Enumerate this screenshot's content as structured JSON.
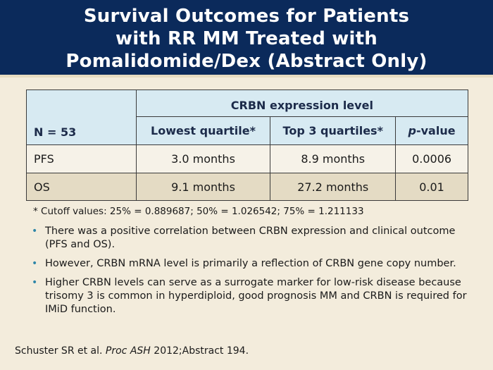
{
  "header": {
    "title_line1": "Survival Outcomes for Patients",
    "title_line2": "with RR MM Treated with",
    "title_line3": "Pomalidomide/Dex (Abstract Only)"
  },
  "table": {
    "n_label": "N = 53",
    "group_header": "CRBN expression level",
    "col_lowest": "Lowest quartile*",
    "col_top3": "Top 3 quartiles*",
    "col_p_italic": "p",
    "col_p_rest": "-value",
    "rows": [
      {
        "label": "PFS",
        "lowest": "3.0 months",
        "top3": "8.9 months",
        "p": "0.0006"
      },
      {
        "label": "OS",
        "lowest": "9.1 months",
        "top3": "27.2 months",
        "p": "0.01"
      }
    ]
  },
  "footnote": "* Cutoff values: 25% = 0.889687; 50% = 1.026542; 75% = 1.211133",
  "bullets": [
    "There was a positive correlation between CRBN expression and clinical outcome (PFS and OS).",
    "However, CRBN mRNA level is primarily a reflection of CRBN gene copy number.",
    "Higher CRBN levels can serve as a surrogate marker for low-risk disease because trisomy 3 is common in hyperdiploid, good prognosis MM and CRBN is required for IMiD function."
  ],
  "bullet_symbol": "•",
  "citation": {
    "authors": "Schuster SR et al.",
    "journal": "Proc ASH",
    "rest": "2012;Abstract 194."
  },
  "colors": {
    "header_bg": "#0b2a5b",
    "page_bg": "#f3ecdc",
    "table_header_bg": "#d7eaf2",
    "row_alt_bg": "#e4dbc4",
    "bullet_color": "#2e86a8"
  }
}
